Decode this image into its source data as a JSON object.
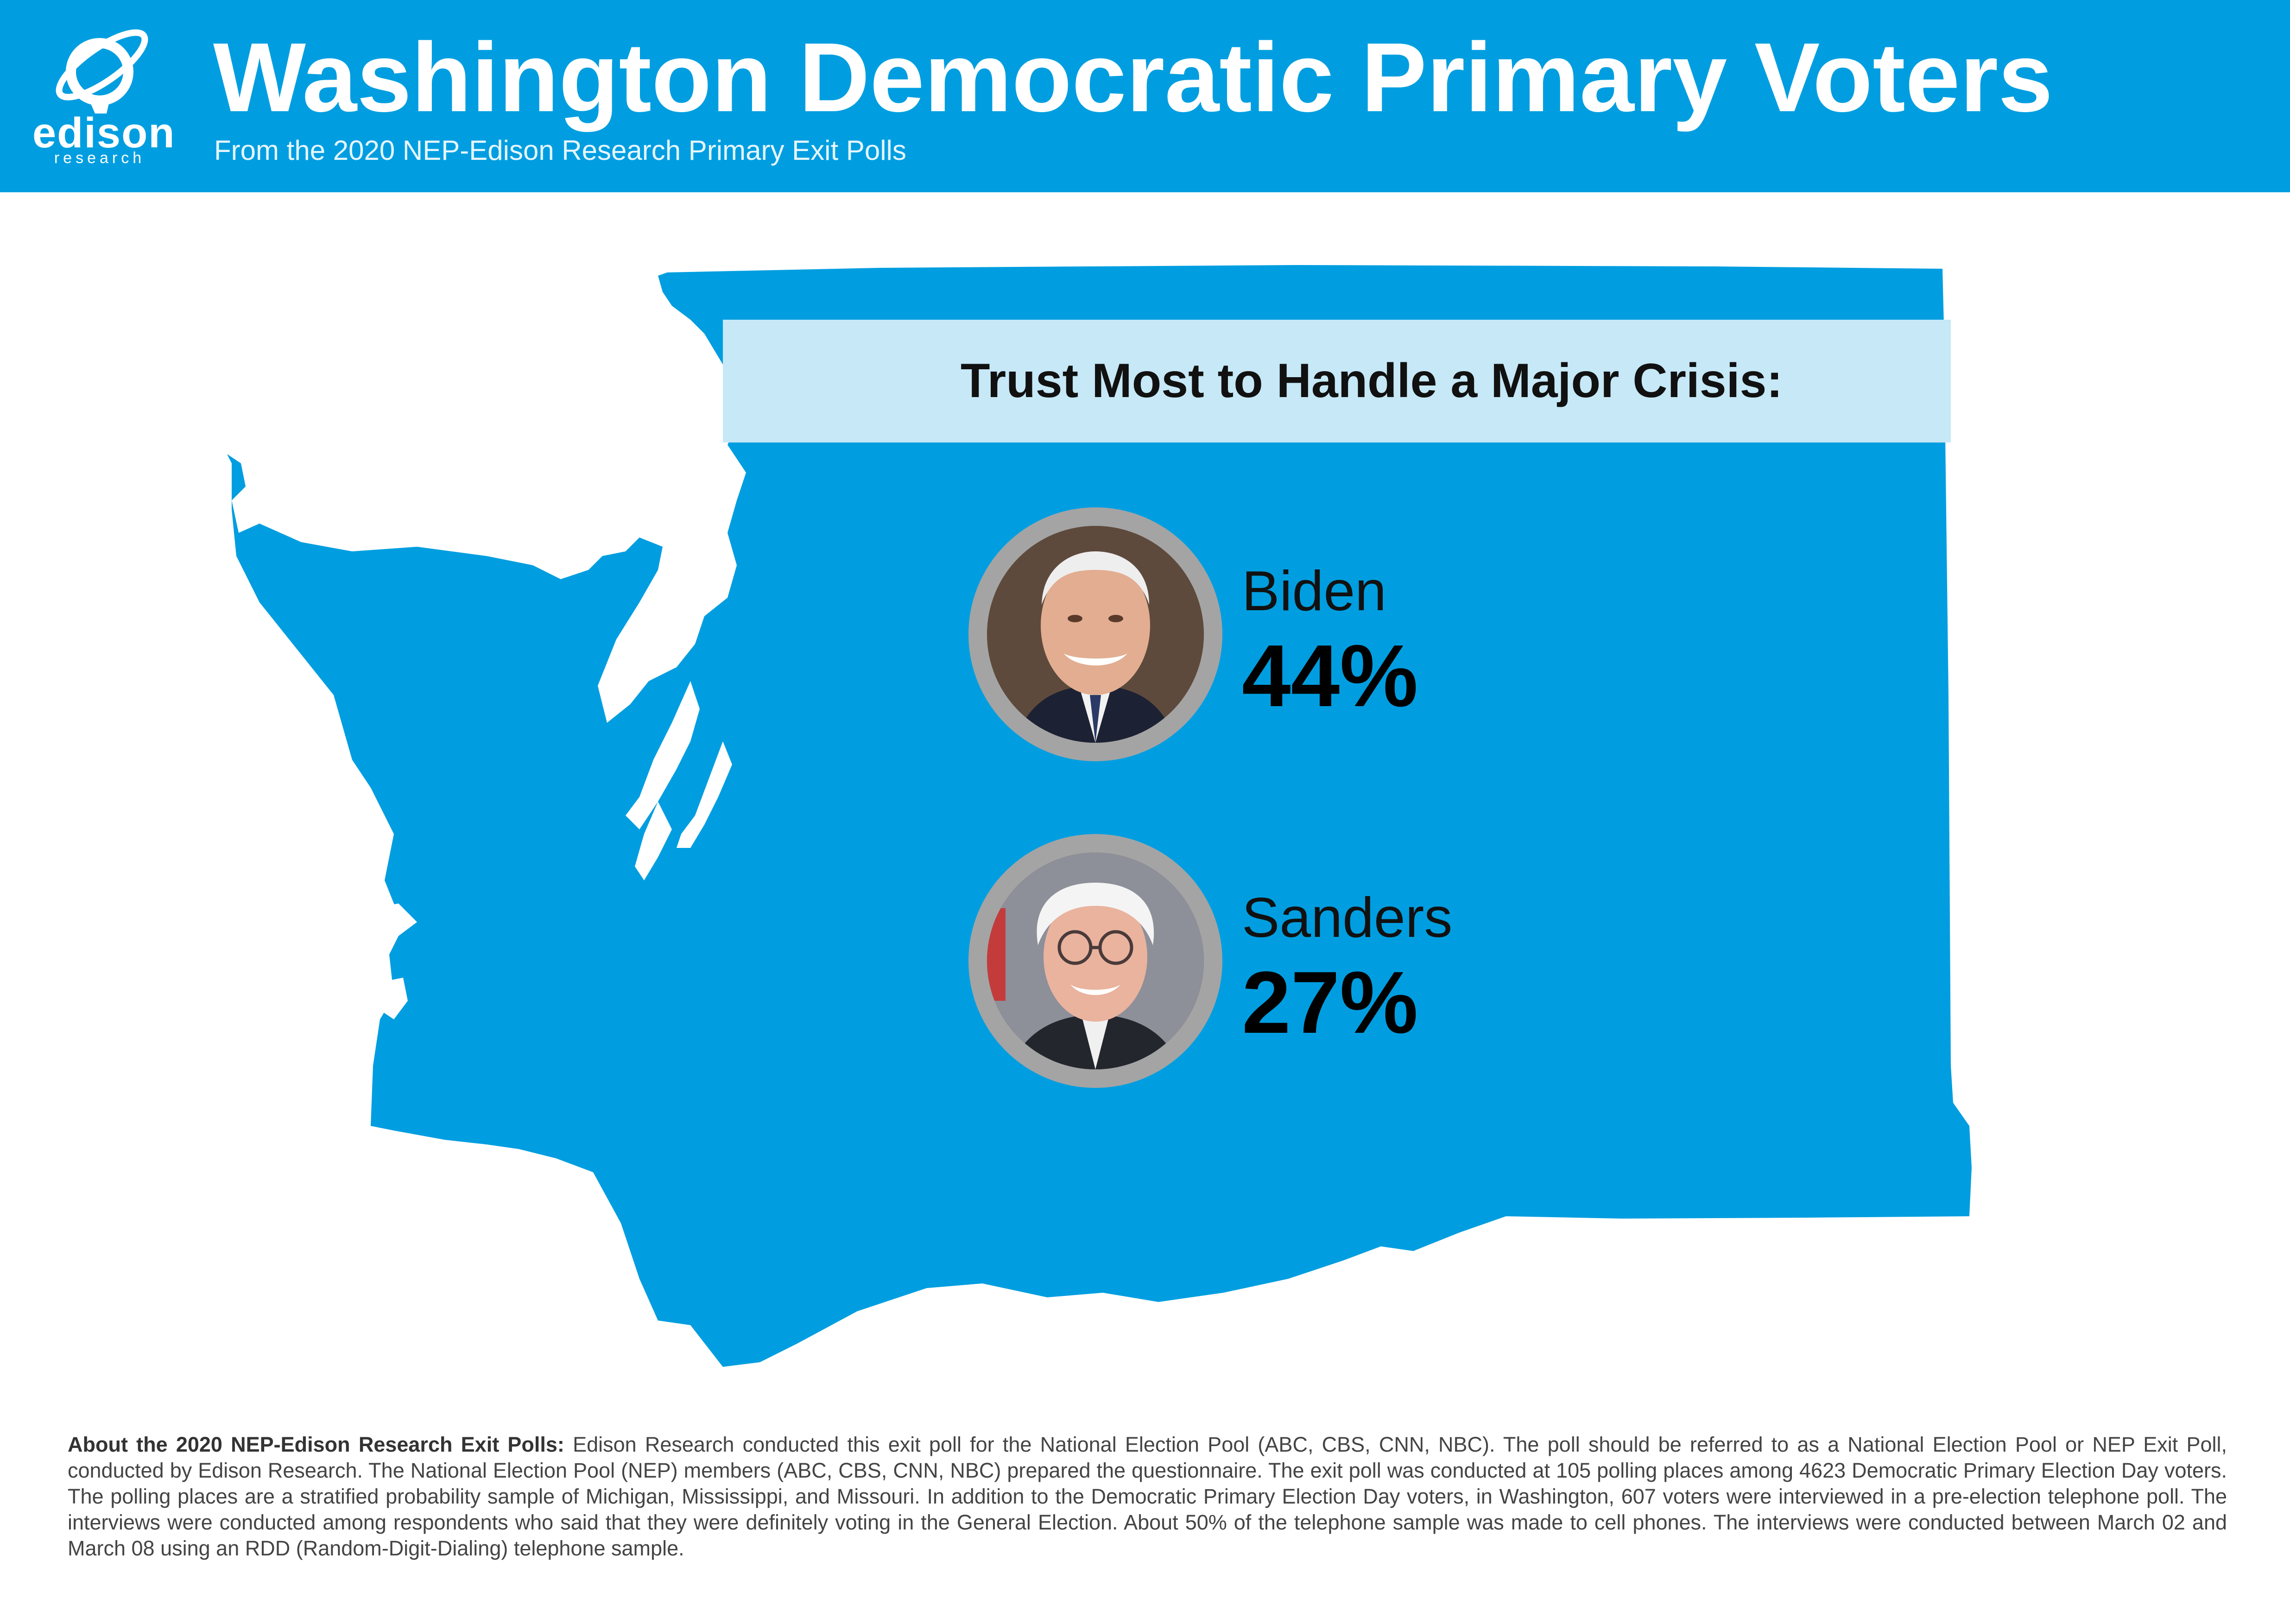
{
  "header": {
    "title": "Washington Democratic Primary Voters",
    "subtitle": "From the 2020 NEP-Edison Research Primary Exit Polls",
    "logo_word": "edison",
    "logo_sub": "research"
  },
  "colors": {
    "header_bg": "#009ee0",
    "map_fill": "#009ee0",
    "question_band": "#c6e8f7",
    "photo_ring": "#a4a4a4"
  },
  "question": "Trust Most to Handle a Major Crisis:",
  "candidates": [
    {
      "name": "Biden",
      "percent": "44%",
      "value": 44,
      "icon": "biden-portrait"
    },
    {
      "name": "Sanders",
      "percent": "27%",
      "value": 27,
      "icon": "sanders-portrait"
    }
  ],
  "footnote": {
    "heading": "About the 2020 NEP-Edison Research Exit Polls:",
    "body": " Edison Research conducted this exit poll for the National Election Pool (ABC, CBS, CNN, NBC). The poll should be referred to as a National Election Pool or NEP Exit Poll, conducted by Edison Research. The National Election Pool (NEP) members (ABC, CBS, CNN, NBC) prepared the questionnaire. The exit poll was conducted at 105 polling places among 4623 Democratic Primary Election Day voters. The polling places are a stratified probability sample of Michigan, Mississippi, and Missouri. In addition to the Democratic Primary Election Day voters, in Washington, 607 voters were interviewed in a pre-election telephone poll.  The interviews were conducted among respondents who said that they were definitely voting in the General Election.  About 50% of the telephone sample was made to cell phones.  The interviews were conducted between March 02 and March 08 using an RDD (Random-Digit-Dialing) telephone sample."
  }
}
